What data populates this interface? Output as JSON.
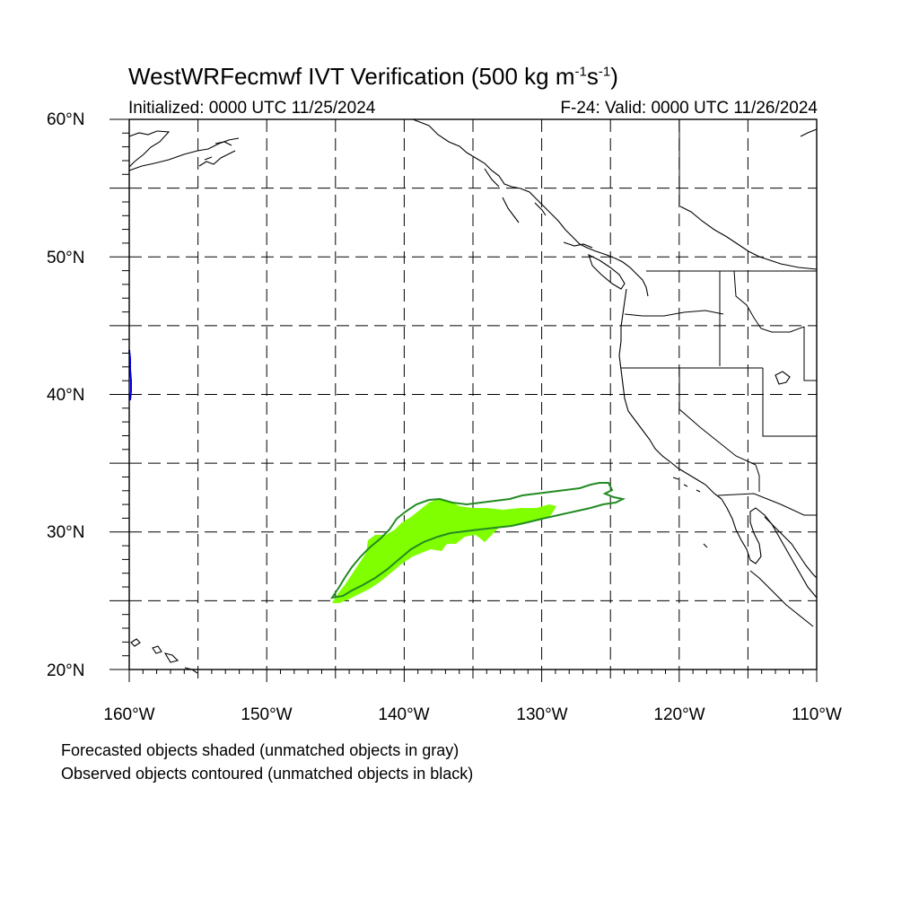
{
  "header": {
    "title_main": "WestWRFecmwf IVT Verification (500 kg m",
    "title_exp1": "-1",
    "title_mid": "s",
    "title_exp2": "-1",
    "title_end": ")",
    "initialized": "Initialized: 0000 UTC 11/25/2024",
    "valid": "F-24: Valid: 0000 UTC 11/26/2024"
  },
  "axes": {
    "lat_labels": [
      "60°N",
      "50°N",
      "40°N",
      "30°N",
      "20°N"
    ],
    "lon_labels": [
      "160°W",
      "150°W",
      "140°W",
      "130°W",
      "120°W",
      "110°W"
    ]
  },
  "legend": {
    "forecast_note": "Forecasted objects shaded (unmatched objects in gray)",
    "observed_note": "Observed objects contoured (unmatched objects in black)"
  },
  "colors": {
    "forecast_fill": "#7fff00",
    "observed_contour": "#228b22",
    "unmatched_observed": "#0000ff"
  }
}
